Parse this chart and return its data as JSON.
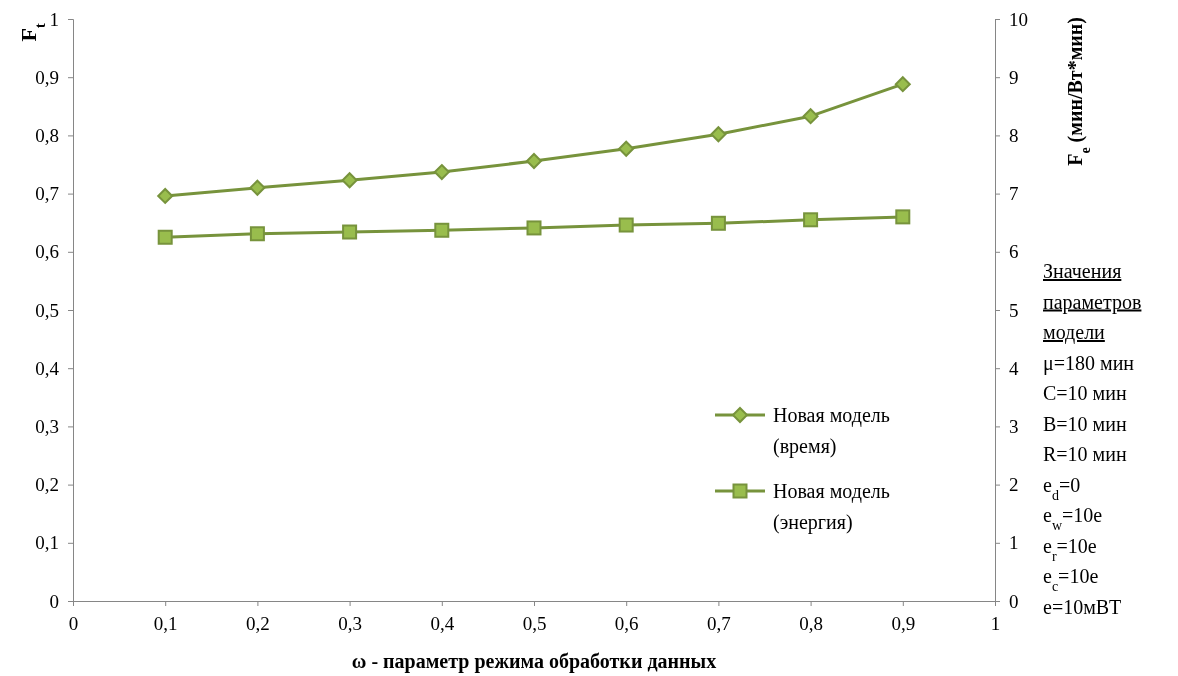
{
  "chart_data": {
    "type": "line",
    "xlabel": "ω - параметр режима обработки данных",
    "ylabel": "F$_{t}$",
    "y2label": "F$_{e}$ (мин/Вт*мин)",
    "x": [
      0.1,
      0.2,
      0.3,
      0.4,
      0.5,
      0.6,
      0.7,
      0.8,
      0.9
    ],
    "series": [
      {
        "name": "Новая модель (время)",
        "color": "#77933c",
        "marker": "diamond",
        "values": [
          0.696,
          0.71,
          0.723,
          0.737,
          0.756,
          0.777,
          0.802,
          0.833,
          0.888
        ]
      },
      {
        "name": "Новая модель (энергия)",
        "color": "#77933c",
        "marker": "square",
        "axis": "y2",
        "values": [
          6.25,
          6.31,
          6.34,
          6.37,
          6.41,
          6.46,
          6.49,
          6.55,
          6.6
        ]
      }
    ],
    "xlim": [
      0,
      1
    ],
    "xticks": [
      0,
      {
        "value": 0.1,
        "label": "0,1"
      },
      {
        "value": 0.2,
        "label": "0,2"
      },
      {
        "value": 0.3,
        "label": "0,3"
      },
      {
        "value": 0.4,
        "label": "0,4"
      },
      {
        "value": 0.5,
        "label": "0,5"
      },
      {
        "value": 0.6,
        "label": "0,6"
      },
      {
        "value": 0.7,
        "label": "0,7"
      },
      {
        "value": 0.8,
        "label": "0,8"
      },
      {
        "value": 0.9,
        "label": "0,9"
      },
      1
    ],
    "ylim": [
      0,
      1
    ],
    "yticks": [
      0,
      {
        "value": 0.1,
        "label": "0,1"
      },
      {
        "value": 0.2,
        "label": "0,2"
      },
      {
        "value": 0.3,
        "label": "0,3"
      },
      {
        "value": 0.4,
        "label": "0,4"
      },
      {
        "value": 0.5,
        "label": "0,5"
      },
      {
        "value": 0.6,
        "label": "0,6"
      },
      {
        "value": 0.7,
        "label": "0,7"
      },
      {
        "value": 0.8,
        "label": "0,8"
      },
      {
        "value": 0.9,
        "label": "0,9"
      },
      1
    ],
    "y2lim": [
      0,
      10
    ],
    "y2ticks": [
      0,
      1,
      2,
      3,
      4,
      5,
      6,
      7,
      8,
      9,
      10
    ],
    "legend": "bottom right",
    "annotations": [
      "Значения параметров модели",
      "μ=180 мин",
      "C=10 мин",
      "B=10 мин",
      "R=10 мин",
      "e$_{d}$=0",
      "e$_{w}$=10e",
      "e$_{r}$=10e",
      "e$_{c}$=10e",
      "e=10мВТ"
    ]
  }
}
